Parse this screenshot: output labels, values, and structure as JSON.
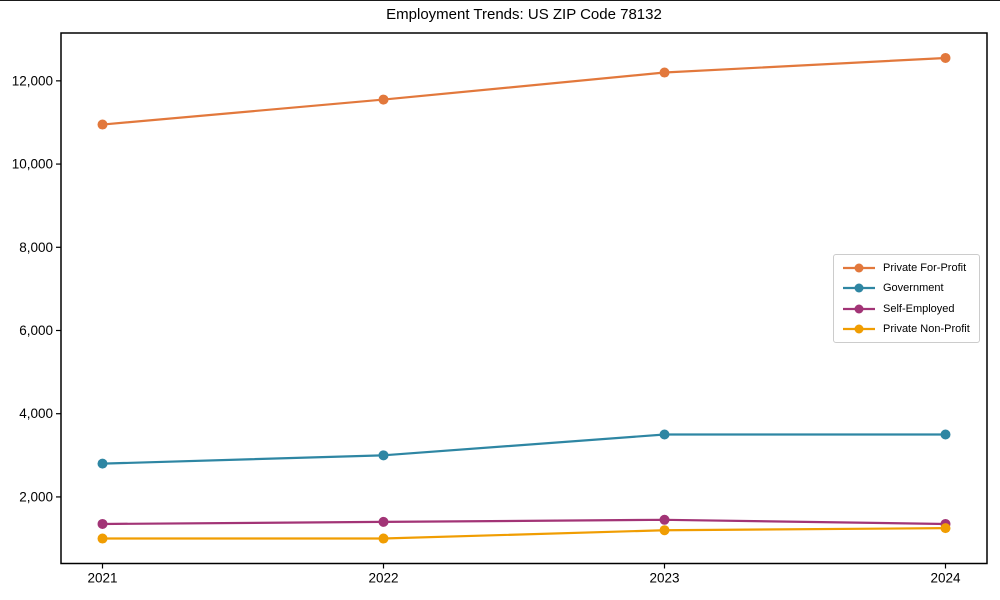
{
  "title": "Employment Trends: US ZIP Code 78132",
  "chart_data": {
    "type": "line",
    "title": "Employment Trends: US ZIP Code 78132",
    "x": [
      "2021",
      "2022",
      "2023",
      "2024"
    ],
    "series": [
      {
        "name": "Private For-Profit",
        "color": "#E2783C",
        "values": [
          10950,
          11550,
          12200,
          12550
        ]
      },
      {
        "name": "Government",
        "color": "#2E86A3",
        "values": [
          2800,
          3000,
          3500,
          3500
        ]
      },
      {
        "name": "Self-Employed",
        "color": "#A23476",
        "values": [
          1350,
          1400,
          1450,
          1350
        ]
      },
      {
        "name": "Private Non-Profit",
        "color": "#F09D02",
        "values": [
          1000,
          1000,
          1200,
          1250
        ]
      }
    ],
    "xlabel": "",
    "ylabel": "",
    "yticks": [
      2000,
      4000,
      6000,
      8000,
      10000,
      12000
    ],
    "ylim": [
      400,
      13150
    ],
    "grid": false,
    "marker": "circle",
    "legend_position": "center-right",
    "axis_color": "#000000",
    "legend_border_color": "#cccccc"
  }
}
